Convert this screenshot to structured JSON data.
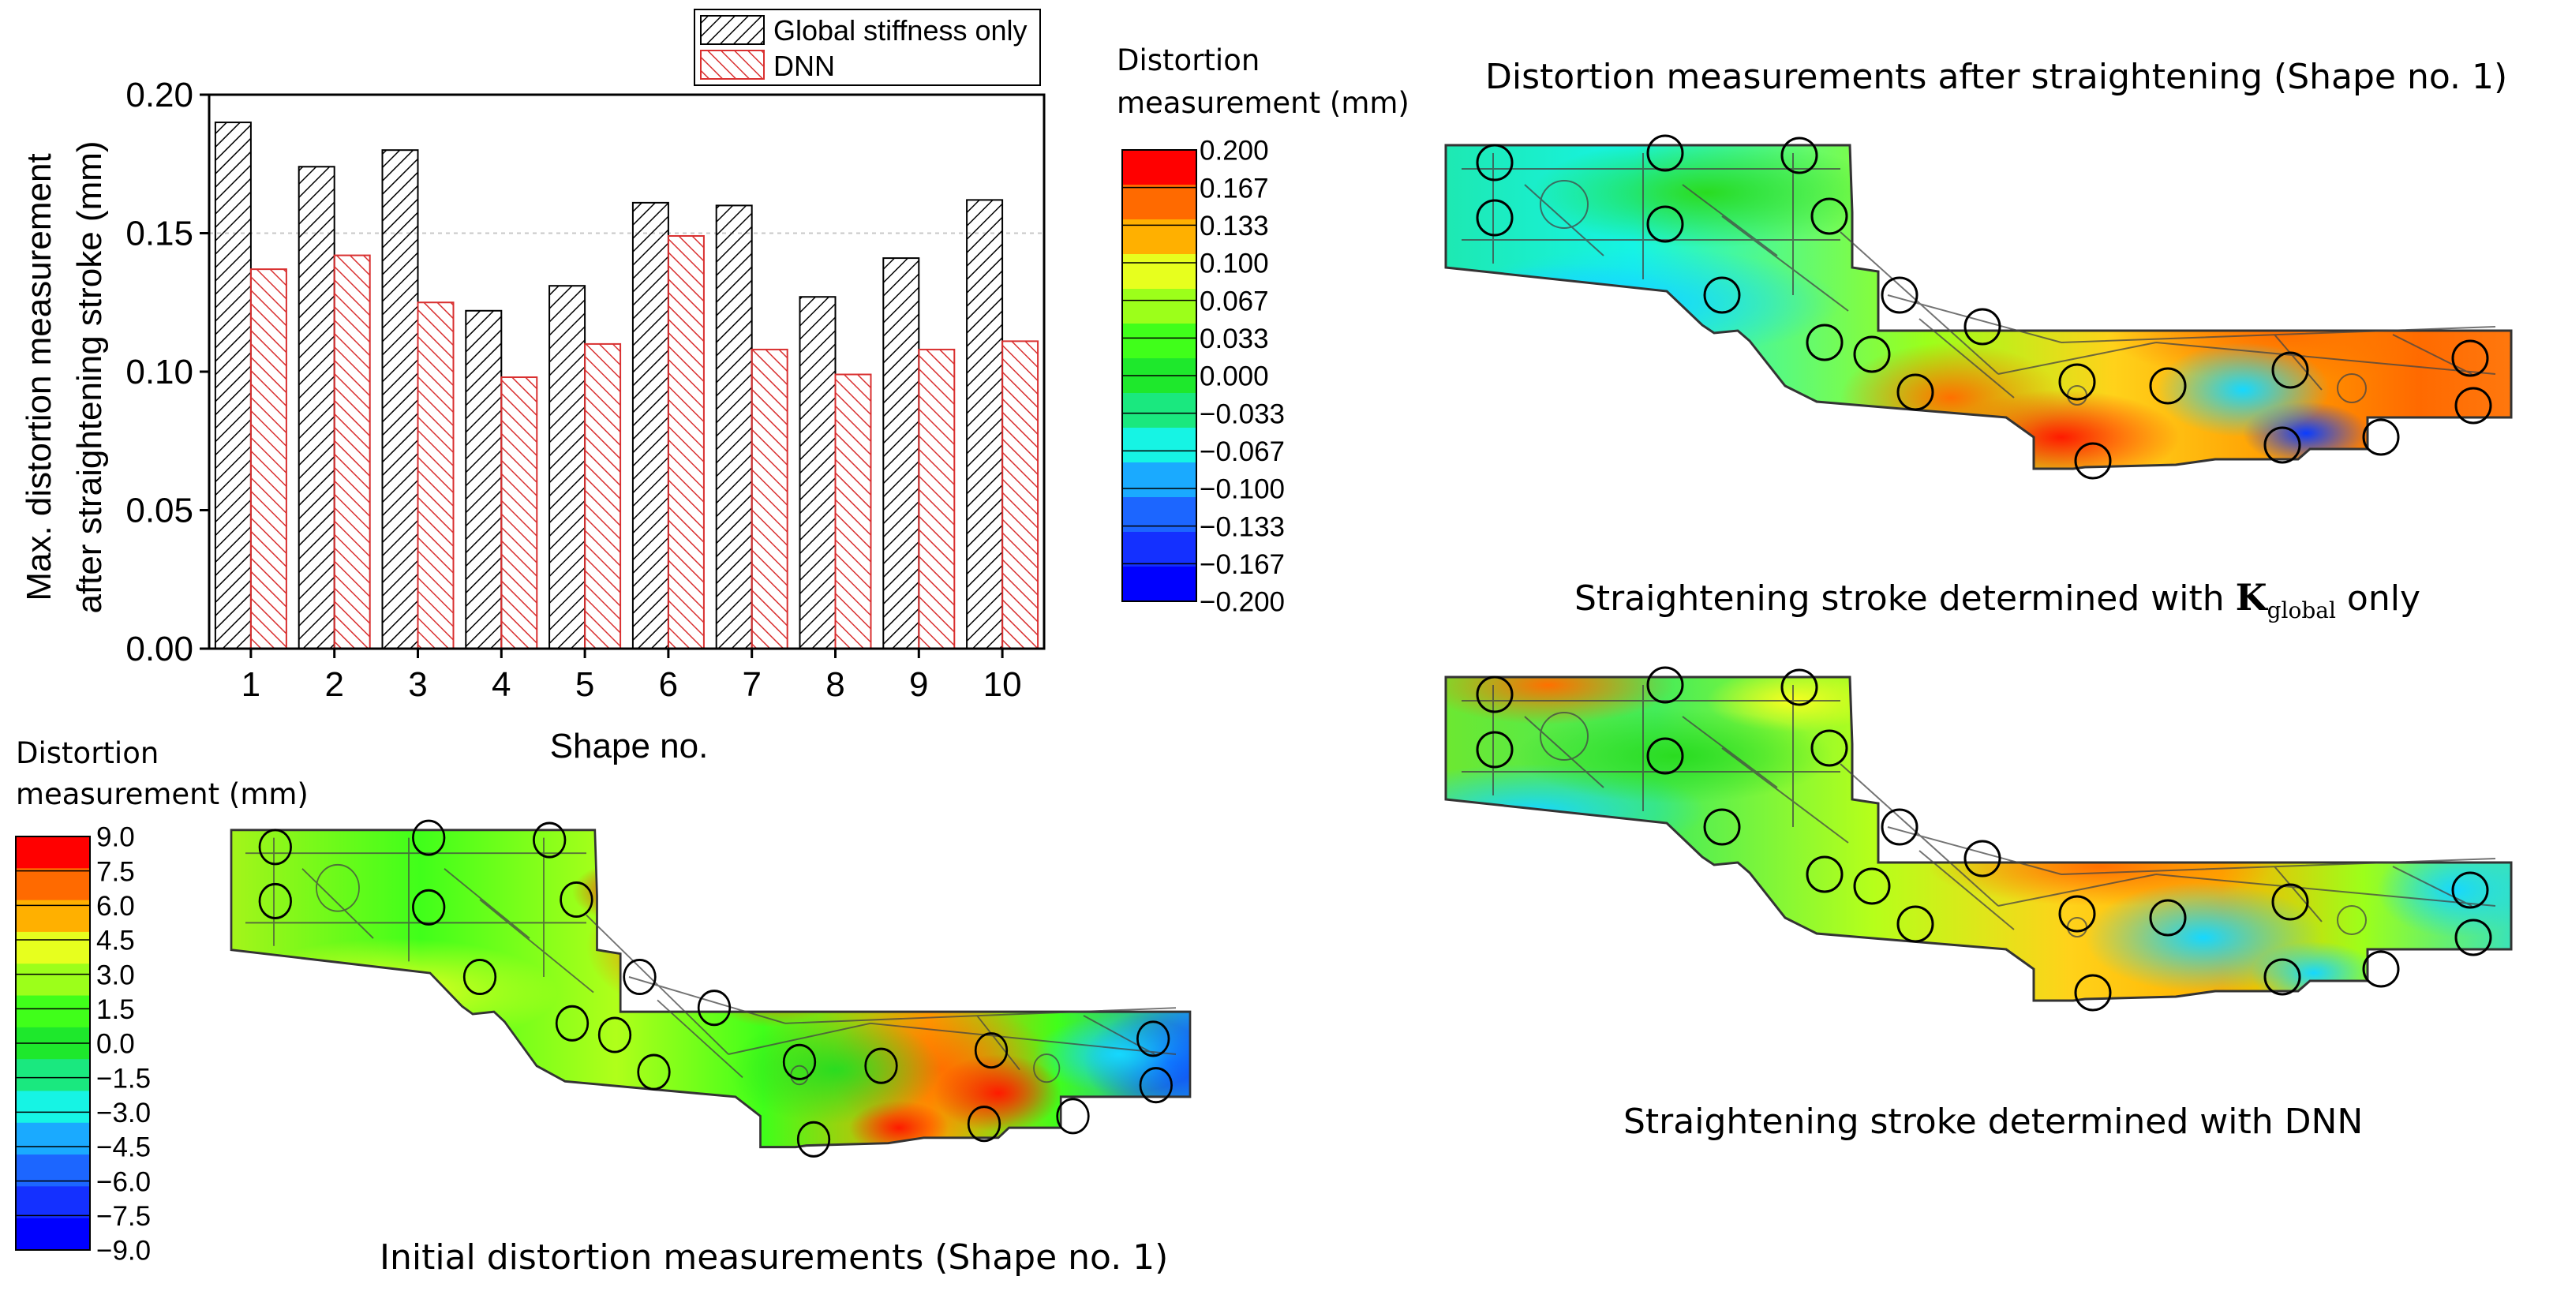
{
  "chart_data": {
    "type": "bar",
    "title": "",
    "xlabel": "Shape no.",
    "ylabel_line1": "Max. distortion measurement",
    "ylabel_line2": "after straightening stroke (mm)",
    "categories": [
      "1",
      "2",
      "3",
      "4",
      "5",
      "6",
      "7",
      "8",
      "9",
      "10"
    ],
    "ylim": [
      0,
      0.2
    ],
    "yticks": [
      "0.00",
      "0.05",
      "0.10",
      "0.15",
      "0.20"
    ],
    "reference_line": 0.15,
    "series": [
      {
        "name": "Global stiffness only",
        "values": [
          0.19,
          0.174,
          0.18,
          0.122,
          0.131,
          0.161,
          0.16,
          0.127,
          0.141,
          0.162
        ]
      },
      {
        "name": "DNN",
        "values": [
          0.137,
          0.142,
          0.125,
          0.098,
          0.11,
          0.149,
          0.108,
          0.099,
          0.108,
          0.111
        ]
      }
    ],
    "legend_position": "top-right"
  },
  "colorbar_small": {
    "title_line1": "Distortion",
    "title_line2": "measurement (mm)",
    "labels": [
      "0.200",
      "0.167",
      "0.133",
      "0.100",
      "0.067",
      "0.033",
      "0.000",
      "−0.033",
      "−0.067",
      "−0.100",
      "−0.133",
      "−0.167",
      "−0.200"
    ]
  },
  "colorbar_large": {
    "title_line1": "Distortion",
    "title_line2": "measurement (mm)",
    "labels": [
      "9.0",
      "7.5",
      "6.0",
      "4.5",
      "3.0",
      "1.5",
      "0.0",
      "−1.5",
      "−3.0",
      "−4.5",
      "−6.0",
      "−7.5",
      "−9.0"
    ]
  },
  "colormap": [
    "#ff0000",
    "#ff6a00",
    "#ffb000",
    "#e7ff1e",
    "#9cff1a",
    "#40ff1a",
    "#1ee82c",
    "#1ae87f",
    "#16f4e4",
    "#1aaaff",
    "#1c66ff",
    "#1430ff",
    "#0000ff"
  ],
  "panels": {
    "top_title": "Distortion measurements after straightening (Shape no. 1)",
    "kglobal_prefix": "Straightening stroke determined with ",
    "kglobal_symbol": "K",
    "kglobal_subscript": "global",
    "kglobal_suffix": " only",
    "dnn_caption": "Straightening stroke determined with DNN",
    "initial_caption": "Initial distortion measurements (Shape no. 1)"
  }
}
